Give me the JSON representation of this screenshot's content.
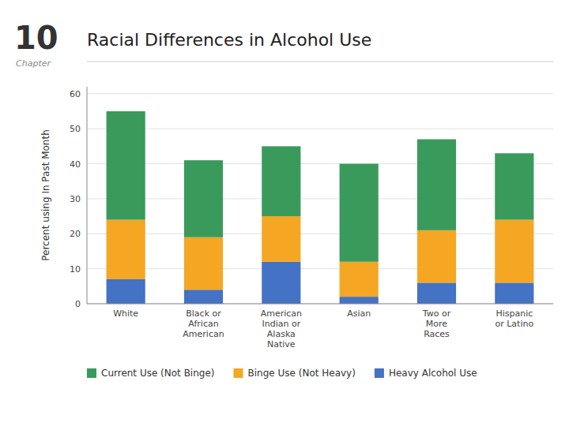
{
  "chart_data": {
    "type": "bar",
    "stacked": true,
    "title": "Racial Differences in Alcohol Use",
    "annotations": [
      "10",
      "Chapter"
    ],
    "ylabel": "Percent using In Past Month",
    "categories": [
      "White",
      "Black or\nAfrican\nAmerican",
      "American\nIndian or\nAlaska\nNative",
      "Asian",
      "Two or\nMore\nRaces",
      "Hispanic\nor Latino"
    ],
    "series": [
      {
        "name": "Heavy Alcohol Use",
        "color": "#4472C4",
        "values": [
          7,
          4,
          12,
          2,
          6,
          6
        ]
      },
      {
        "name": "Binge Use (Not Heavy)",
        "color": "#F5A623",
        "values": [
          17,
          15,
          13,
          10,
          15,
          18
        ]
      },
      {
        "name": "Current Use (Not Binge)",
        "color": "#3A9A5C",
        "values": [
          31,
          22,
          20,
          28,
          26,
          19
        ]
      }
    ],
    "ylim": [
      0,
      62
    ],
    "yticks": [
      0,
      10,
      20,
      30,
      40,
      50,
      60
    ],
    "grid": true,
    "legend": "bottom"
  }
}
